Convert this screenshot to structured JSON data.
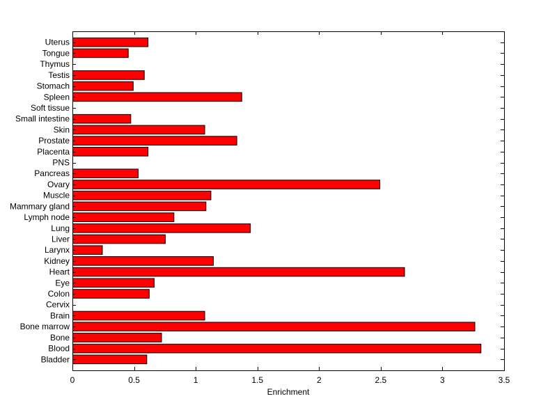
{
  "chart_data": {
    "type": "bar",
    "orientation": "horizontal",
    "title": "",
    "xlabel": "Enrichment",
    "ylabel": "",
    "xlim": [
      0,
      3.5
    ],
    "xticks": [
      0,
      0.5,
      1,
      1.5,
      2,
      2.5,
      3,
      3.5
    ],
    "xtick_labels": [
      "0",
      "0.5",
      "1",
      "1.5",
      "2",
      "2.5",
      "3",
      "3.5"
    ],
    "grid": false,
    "bar_color": "#ff0000",
    "edge_color": "#000000",
    "categories": [
      "Bladder",
      "Blood",
      "Bone",
      "Bone marrow",
      "Brain",
      "Cervix",
      "Colon",
      "Eye",
      "Heart",
      "Kidney",
      "Larynx",
      "Liver",
      "Lung",
      "Lymph node",
      "Mammary gland",
      "Muscle",
      "Ovary",
      "Pancreas",
      "PNS",
      "Placenta",
      "Prostate",
      "Skin",
      "Small intestine",
      "Soft tissue",
      "Spleen",
      "Stomach",
      "Testis",
      "Thymus",
      "Tongue",
      "Uterus"
    ],
    "values": [
      0.6,
      3.31,
      0.72,
      3.26,
      1.07,
      0,
      0.62,
      0.66,
      2.69,
      1.14,
      0.24,
      0.75,
      1.44,
      0.82,
      1.08,
      1.12,
      2.49,
      0.53,
      0,
      0.61,
      1.33,
      1.07,
      0.47,
      0,
      1.37,
      0.49,
      0.58,
      0,
      0.45,
      0.61
    ]
  }
}
